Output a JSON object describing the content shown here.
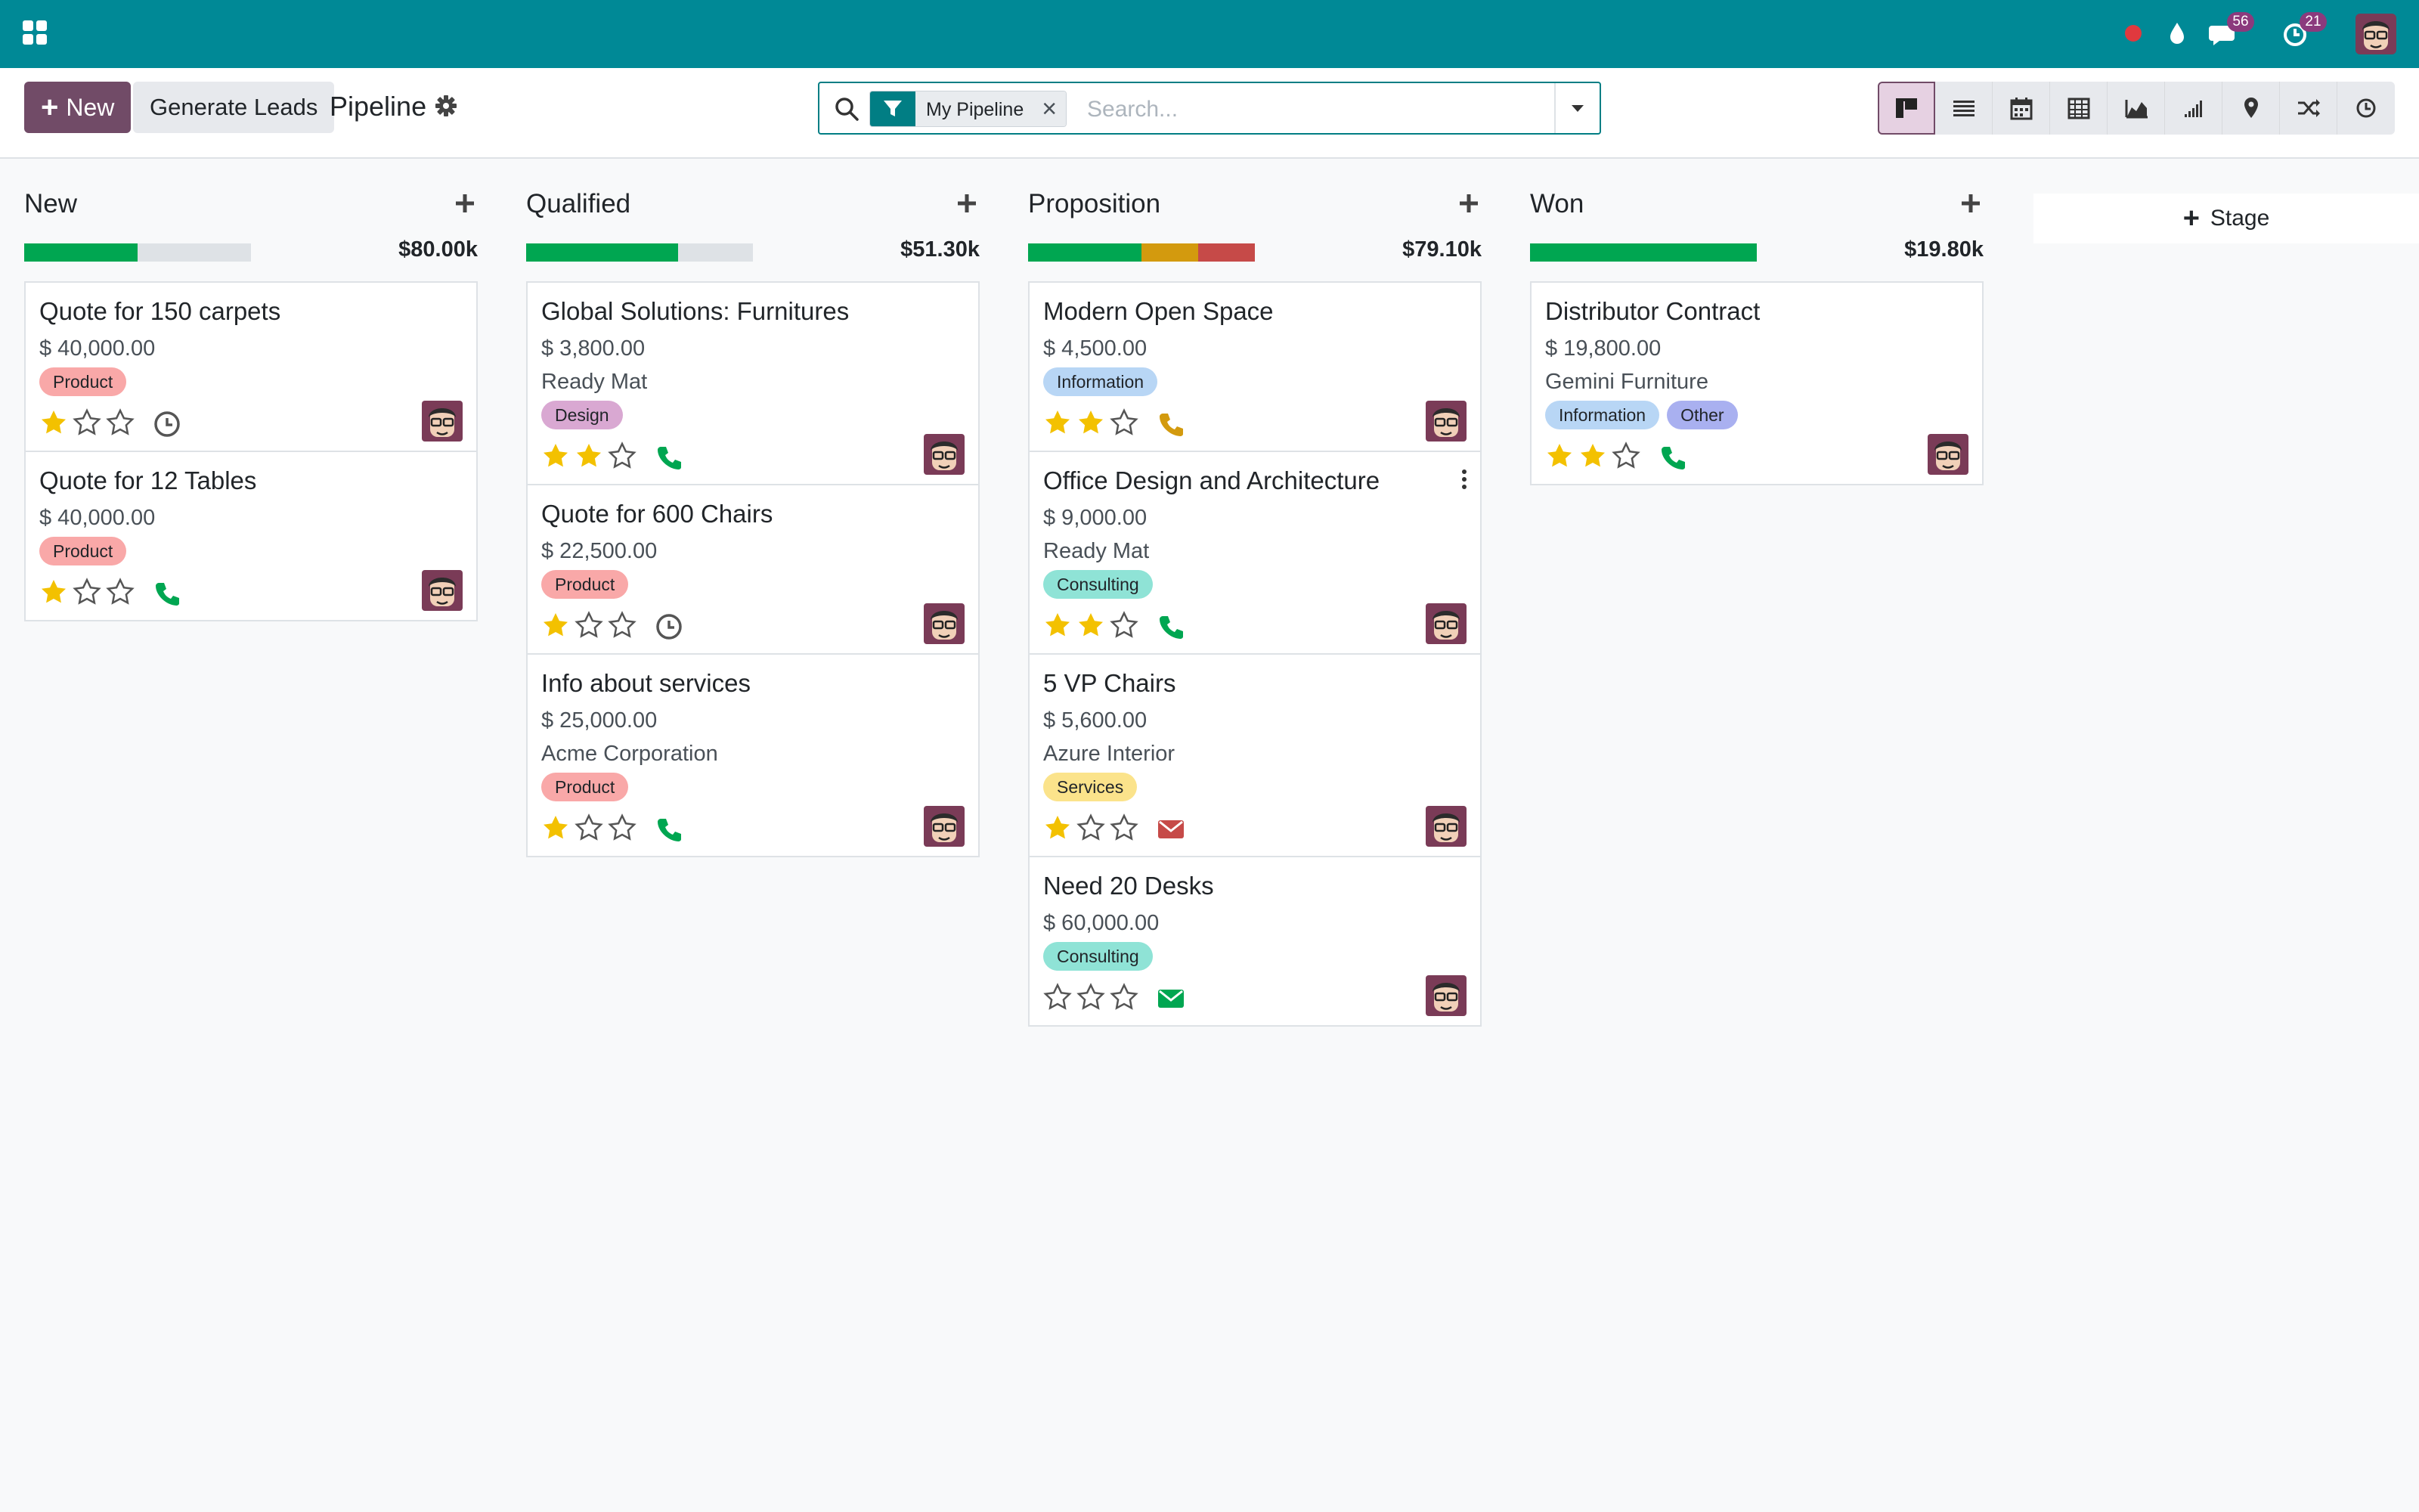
{
  "navbar": {
    "apps_icon": "apps-grid-icon",
    "status_icon": "red-dot-icon",
    "drop_icon": "droplet-icon",
    "messages_icon": "chat-icon",
    "messages_count": "56",
    "activities_icon": "clock-icon",
    "activities_count": "21",
    "user_avatar": "user-avatar"
  },
  "toolbar": {
    "new_label": "New",
    "generate_label": "Generate Leads",
    "breadcrumb": "Pipeline",
    "settings_icon": "gear-icon"
  },
  "search": {
    "facet_label": "My Pipeline",
    "placeholder": "Search...",
    "facet_icon": "filter-icon",
    "toggle_icon": "caret-down-icon"
  },
  "views": [
    "kanban",
    "list",
    "calendar",
    "pivot",
    "graph",
    "cohort",
    "map",
    "activity-flow",
    "activity"
  ],
  "colors": {
    "brand": "#714b67",
    "navbar": "#008996",
    "accent": "#017e84",
    "won": "#00a651",
    "planned": "#d39a0e",
    "overdue": "#c64a48",
    "star": "#f3c100"
  },
  "columns": [
    {
      "title": "New",
      "total": "$80.00k",
      "progress": [
        {
          "color": "#00a651",
          "fraction": 0.5
        }
      ],
      "cards": [
        {
          "title": "Quote for 150 carpets",
          "amount": "$ 40,000.00",
          "partner": "",
          "tags": [
            {
              "label": "Product",
              "color": "#f9a8a8"
            }
          ],
          "stars": 1,
          "activity": "clock"
        },
        {
          "title": "Quote for 12 Tables",
          "amount": "$ 40,000.00",
          "partner": "",
          "tags": [
            {
              "label": "Product",
              "color": "#f9a8a8"
            }
          ],
          "stars": 1,
          "activity": "phone-green"
        }
      ]
    },
    {
      "title": "Qualified",
      "total": "$51.30k",
      "progress": [
        {
          "color": "#00a651",
          "fraction": 0.67
        }
      ],
      "cards": [
        {
          "title": "Global Solutions: Furnitures",
          "amount": "$ 3,800.00",
          "partner": "Ready Mat",
          "tags": [
            {
              "label": "Design",
              "color": "#d9a8d2"
            }
          ],
          "stars": 2,
          "activity": "phone-green"
        },
        {
          "title": "Quote for 600 Chairs",
          "amount": "$ 22,500.00",
          "partner": "",
          "tags": [
            {
              "label": "Product",
              "color": "#f9a8a8"
            }
          ],
          "stars": 1,
          "activity": "clock"
        },
        {
          "title": "Info about services",
          "amount": "$ 25,000.00",
          "partner": "Acme Corporation",
          "tags": [
            {
              "label": "Product",
              "color": "#f9a8a8"
            }
          ],
          "stars": 1,
          "activity": "phone-green"
        }
      ]
    },
    {
      "title": "Proposition",
      "total": "$79.10k",
      "progress": [
        {
          "color": "#00a651",
          "fraction": 0.5
        },
        {
          "color": "#d39a0e",
          "fraction": 0.25
        },
        {
          "color": "#c64a48",
          "fraction": 0.25
        }
      ],
      "cards": [
        {
          "title": "Modern Open Space",
          "amount": "$ 4,500.00",
          "partner": "",
          "tags": [
            {
              "label": "Information",
              "color": "#b8d6f5"
            }
          ],
          "stars": 2,
          "activity": "phone-orange"
        },
        {
          "title": "Office Design and Architecture",
          "amount": "$ 9,000.00",
          "partner": "Ready Mat",
          "tags": [
            {
              "label": "Consulting",
              "color": "#8fe3d6"
            }
          ],
          "stars": 2,
          "activity": "phone-green",
          "menu": true
        },
        {
          "title": "5 VP Chairs",
          "amount": "$ 5,600.00",
          "partner": "Azure Interior",
          "tags": [
            {
              "label": "Services",
              "color": "#fbe38b"
            }
          ],
          "stars": 1,
          "activity": "mail-red"
        },
        {
          "title": "Need 20 Desks",
          "amount": "$ 60,000.00",
          "partner": "",
          "tags": [
            {
              "label": "Consulting",
              "color": "#8fe3d6"
            }
          ],
          "stars": 0,
          "activity": "mail-green"
        }
      ]
    },
    {
      "title": "Won",
      "total": "$19.80k",
      "progress": [
        {
          "color": "#00a651",
          "fraction": 1
        }
      ],
      "cards": [
        {
          "title": "Distributor Contract",
          "amount": "$ 19,800.00",
          "partner": "Gemini Furniture",
          "tags": [
            {
              "label": "Information",
              "color": "#b8d6f5"
            },
            {
              "label": "Other",
              "color": "#a9b0f0"
            }
          ],
          "stars": 2,
          "activity": "phone-green"
        }
      ]
    }
  ],
  "add_stage_label": "Stage"
}
